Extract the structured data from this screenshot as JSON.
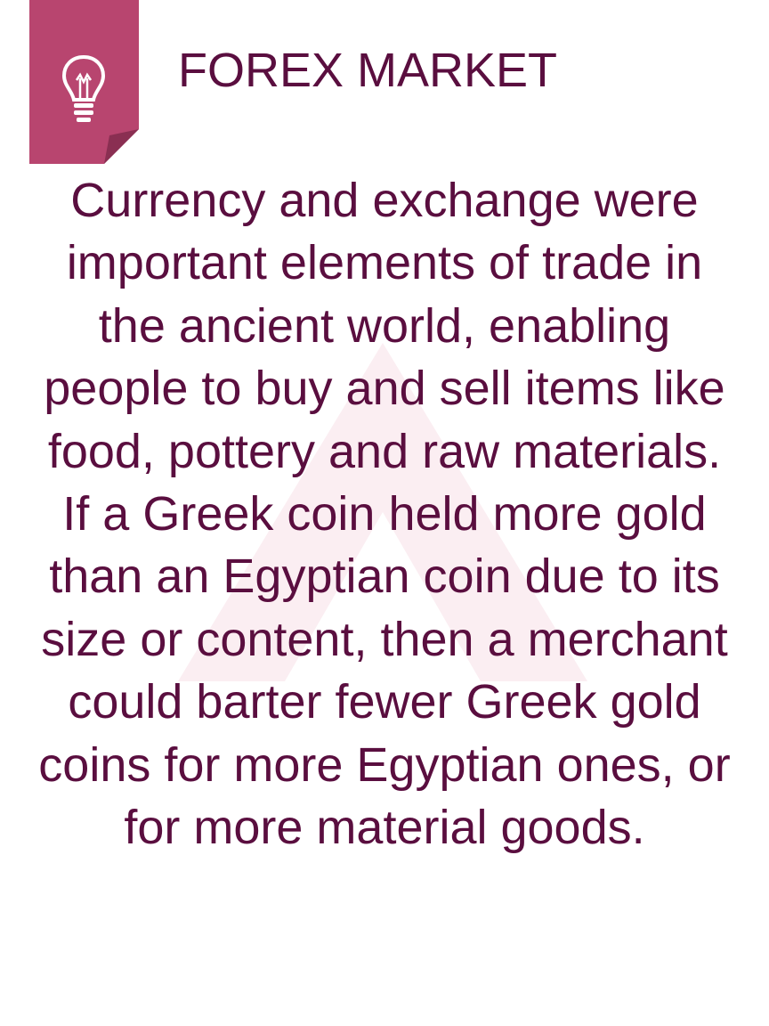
{
  "slide": {
    "title": "FOREX MARKET",
    "paragraphs": [
      "Currency and exchange were important elements of trade in the ancient world, enabling people to buy and sell items like food, pottery and raw materials.",
      "If a Greek coin held more gold than an Egyptian coin due to its size or content, then a merchant could barter fewer Greek gold coins for more Egyptian ones, or for more material goods."
    ]
  },
  "icons": {
    "tag": "folded-corner-tag",
    "bulb": "lightbulb-icon",
    "watermark": "chevron-watermark"
  },
  "colors": {
    "tag": "#b8456f",
    "tag_fold": "#8a2f52",
    "text": "#5a0e3f",
    "watermark": "#fbeef2"
  }
}
